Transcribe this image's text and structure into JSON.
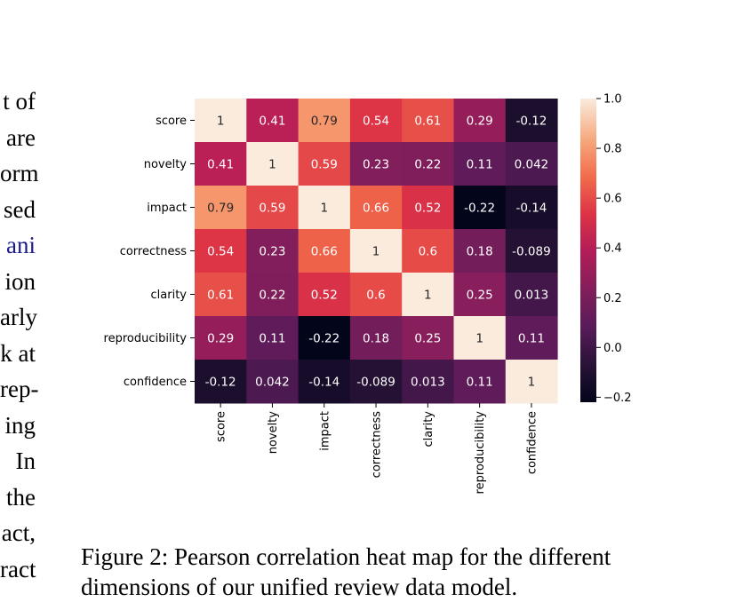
{
  "left_text_fragments": [
    "t of",
    "are",
    "orm",
    "sed",
    "ani",
    "ion",
    "arly",
    "k at",
    "rep-",
    "ing",
    "In",
    "the",
    "act,",
    "ract"
  ],
  "left_text_link_index": 4,
  "caption": {
    "label": "Figure 2:",
    "text": "Pearson correlation heat map for the different dimensions of our unified review data model."
  },
  "chart_data": {
    "type": "heatmap",
    "title": "",
    "row_labels": [
      "score",
      "novelty",
      "impact",
      "correctness",
      "clarity",
      "reproducibility",
      "confidence"
    ],
    "col_labels": [
      "score",
      "novelty",
      "impact",
      "correctness",
      "clarity",
      "reproducibility",
      "confidence"
    ],
    "values": [
      [
        1,
        0.41,
        0.79,
        0.54,
        0.61,
        0.29,
        -0.12
      ],
      [
        0.41,
        1,
        0.59,
        0.23,
        0.22,
        0.11,
        0.042
      ],
      [
        0.79,
        0.59,
        1,
        0.66,
        0.52,
        -0.22,
        -0.14
      ],
      [
        0.54,
        0.23,
        0.66,
        1,
        0.6,
        0.18,
        -0.089
      ],
      [
        0.61,
        0.22,
        0.52,
        0.6,
        1,
        0.25,
        0.013
      ],
      [
        0.29,
        0.11,
        -0.22,
        0.18,
        0.25,
        1,
        0.11
      ],
      [
        -0.12,
        0.042,
        -0.14,
        -0.089,
        0.013,
        0.11,
        1
      ]
    ],
    "annotations": [
      [
        "1",
        "0.41",
        "0.79",
        "0.54",
        "0.61",
        "0.29",
        "-0.12"
      ],
      [
        "0.41",
        "1",
        "0.59",
        "0.23",
        "0.22",
        "0.11",
        "0.042"
      ],
      [
        "0.79",
        "0.59",
        "1",
        "0.66",
        "0.52",
        "-0.22",
        "-0.14"
      ],
      [
        "0.54",
        "0.23",
        "0.66",
        "1",
        "0.6",
        "0.18",
        "-0.089"
      ],
      [
        "0.61",
        "0.22",
        "0.52",
        "0.6",
        "1",
        "0.25",
        "0.013"
      ],
      [
        "0.29",
        "0.11",
        "-0.22",
        "0.18",
        "0.25",
        "1",
        "0.11"
      ],
      [
        "-0.12",
        "0.042",
        "-0.14",
        "-0.089",
        "0.013",
        "0.11",
        "1"
      ]
    ],
    "colorbar": {
      "colormap": "rocket",
      "vmin": -0.22,
      "vmax": 1.0,
      "ticks": [
        1.0,
        0.8,
        0.6,
        0.4,
        0.2,
        0.0,
        -0.2
      ],
      "tick_labels": [
        "1.0",
        "0.8",
        "0.6",
        "0.4",
        "0.2",
        "0.0",
        "−0.2"
      ]
    },
    "grid": false,
    "legend": "right"
  }
}
